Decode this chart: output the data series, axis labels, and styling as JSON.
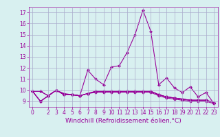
{
  "xlabel": "Windchill (Refroidissement éolien,°C)",
  "x": [
    0,
    1,
    2,
    3,
    4,
    5,
    6,
    7,
    8,
    9,
    10,
    11,
    12,
    13,
    14,
    15,
    16,
    17,
    18,
    19,
    20,
    21,
    22,
    23
  ],
  "series": [
    [
      9.9,
      9.9,
      9.5,
      10.0,
      9.7,
      9.6,
      9.5,
      9.7,
      9.8,
      9.8,
      9.8,
      9.8,
      9.8,
      9.8,
      9.8,
      9.8,
      9.5,
      9.3,
      9.2,
      9.1,
      9.0,
      9.0,
      9.0,
      8.8
    ],
    [
      9.9,
      9.9,
      9.5,
      10.0,
      9.6,
      9.6,
      9.5,
      9.7,
      9.9,
      9.9,
      9.9,
      9.9,
      9.9,
      9.9,
      9.9,
      9.9,
      9.6,
      9.4,
      9.3,
      9.2,
      9.1,
      9.1,
      9.1,
      8.9
    ],
    [
      9.9,
      9.0,
      9.5,
      10.0,
      9.6,
      9.6,
      9.5,
      9.7,
      9.9,
      9.9,
      9.9,
      9.9,
      9.9,
      9.9,
      9.9,
      9.9,
      9.6,
      9.4,
      9.3,
      9.2,
      9.1,
      9.1,
      9.1,
      8.9
    ],
    [
      9.9,
      9.0,
      9.5,
      10.0,
      9.6,
      9.6,
      9.5,
      9.7,
      9.9,
      9.9,
      9.9,
      9.9,
      9.9,
      9.9,
      9.9,
      9.9,
      9.6,
      9.4,
      9.3,
      9.2,
      9.1,
      9.1,
      9.1,
      8.9
    ],
    [
      9.9,
      9.0,
      9.5,
      10.0,
      9.6,
      9.6,
      9.5,
      11.8,
      11.0,
      10.5,
      12.1,
      12.2,
      13.4,
      15.0,
      17.2,
      15.3,
      10.5,
      11.1,
      10.2,
      9.8,
      10.3,
      9.4,
      9.8,
      8.8
    ]
  ],
  "line_color": "#990099",
  "marker": "D",
  "markersize": 2,
  "linewidth": 0.8,
  "ylim": [
    8.5,
    17.5
  ],
  "xlim": [
    -0.5,
    23.5
  ],
  "yticks": [
    9,
    10,
    11,
    12,
    13,
    14,
    15,
    16,
    17
  ],
  "xticks": [
    0,
    2,
    3,
    4,
    5,
    6,
    7,
    8,
    9,
    10,
    11,
    12,
    13,
    14,
    15,
    16,
    17,
    18,
    19,
    20,
    21,
    22,
    23
  ],
  "xtick_labels": [
    "0",
    "2",
    "3",
    "4",
    "5",
    "6",
    "7",
    "8",
    "9",
    "10",
    "11",
    "12",
    "13",
    "14",
    "15",
    "16",
    "17",
    "18",
    "19",
    "20",
    "21",
    "22",
    "23"
  ],
  "bg_color": "#d8f0f0",
  "grid_color": "#aaaacc",
  "tick_fontsize": 5.5,
  "xlabel_fontsize": 6.5
}
